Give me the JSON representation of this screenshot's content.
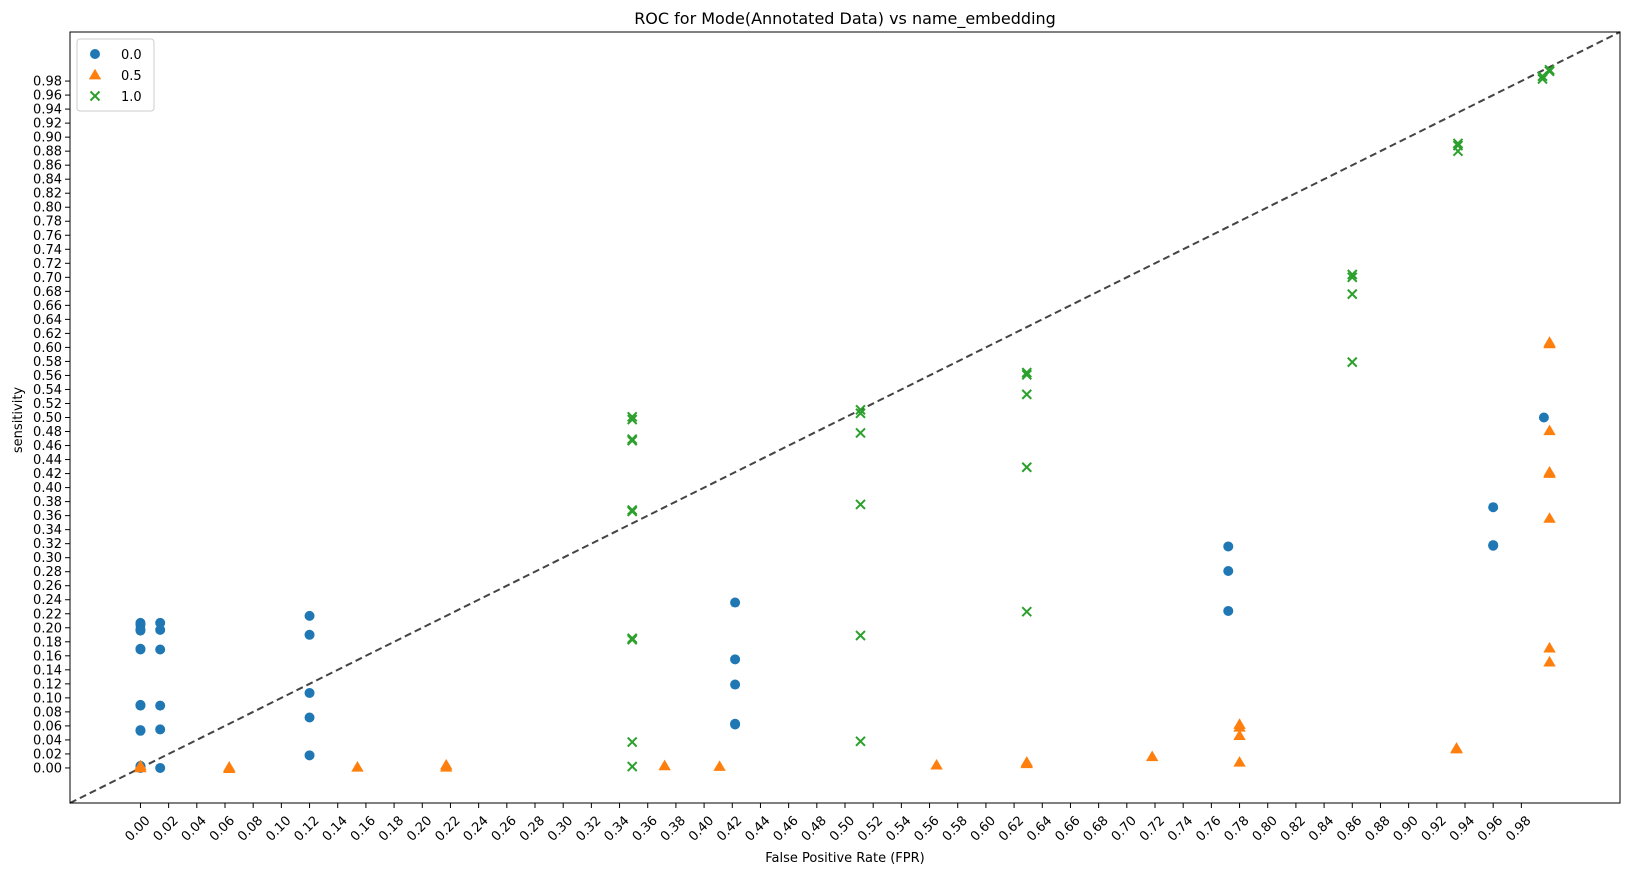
{
  "chart_data": {
    "type": "scatter",
    "title": "ROC for Mode(Annotated Data) vs  name_embedding",
    "xlabel": "False Positive Rate (FPR)",
    "ylabel": "sensitivity",
    "xlim": [
      -0.05,
      1.05
    ],
    "ylim": [
      -0.05,
      1.05
    ],
    "xticks": [
      "0.00",
      "0.02",
      "0.04",
      "0.06",
      "0.08",
      "0.10",
      "0.12",
      "0.14",
      "0.16",
      "0.18",
      "0.20",
      "0.22",
      "0.24",
      "0.26",
      "0.28",
      "0.30",
      "0.32",
      "0.34",
      "0.36",
      "0.38",
      "0.40",
      "0.42",
      "0.44",
      "0.46",
      "0.48",
      "0.50",
      "0.52",
      "0.54",
      "0.56",
      "0.58",
      "0.60",
      "0.62",
      "0.64",
      "0.66",
      "0.68",
      "0.70",
      "0.72",
      "0.74",
      "0.76",
      "0.78",
      "0.80",
      "0.82",
      "0.84",
      "0.86",
      "0.88",
      "0.90",
      "0.92",
      "0.94",
      "0.96",
      "0.98"
    ],
    "yticks": [
      "0.00",
      "0.02",
      "0.04",
      "0.06",
      "0.08",
      "0.10",
      "0.12",
      "0.14",
      "0.16",
      "0.18",
      "0.20",
      "0.22",
      "0.24",
      "0.26",
      "0.28",
      "0.30",
      "0.32",
      "0.34",
      "0.36",
      "0.38",
      "0.40",
      "0.42",
      "0.44",
      "0.46",
      "0.48",
      "0.50",
      "0.52",
      "0.54",
      "0.56",
      "0.58",
      "0.60",
      "0.62",
      "0.64",
      "0.66",
      "0.68",
      "0.70",
      "0.72",
      "0.74",
      "0.76",
      "0.78",
      "0.80",
      "0.82",
      "0.84",
      "0.86",
      "0.88",
      "0.90",
      "0.92",
      "0.94",
      "0.96",
      "0.98"
    ],
    "xtick_rotation": 45,
    "grid": false,
    "legend_position": "top-left",
    "reference_line": {
      "from": [
        -0.05,
        -0.05
      ],
      "to": [
        1.05,
        1.05
      ],
      "style": "dashed",
      "color": "#444444"
    },
    "series": [
      {
        "name": "0.0",
        "marker": "circle",
        "color": "#1f77b4",
        "points": [
          [
            0.0,
            0.207
          ],
          [
            0.0,
            0.204
          ],
          [
            0.0,
            0.198
          ],
          [
            0.0,
            0.196
          ],
          [
            0.0,
            0.17
          ],
          [
            0.0,
            0.169
          ],
          [
            0.0,
            0.09
          ],
          [
            0.0,
            0.089
          ],
          [
            0.0,
            0.054
          ],
          [
            0.0,
            0.053
          ],
          [
            0.0,
            0.003
          ],
          [
            0.0,
            0.0
          ],
          [
            0.014,
            0.207
          ],
          [
            0.014,
            0.197
          ],
          [
            0.014,
            0.169
          ],
          [
            0.014,
            0.089
          ],
          [
            0.014,
            0.055
          ],
          [
            0.014,
            0.0
          ],
          [
            0.12,
            0.217
          ],
          [
            0.12,
            0.19
          ],
          [
            0.12,
            0.107
          ],
          [
            0.12,
            0.072
          ],
          [
            0.12,
            0.018
          ],
          [
            0.422,
            0.236
          ],
          [
            0.422,
            0.155
          ],
          [
            0.422,
            0.119
          ],
          [
            0.422,
            0.063
          ],
          [
            0.422,
            0.062
          ],
          [
            0.772,
            0.316
          ],
          [
            0.772,
            0.281
          ],
          [
            0.772,
            0.224
          ],
          [
            0.96,
            0.372
          ],
          [
            0.96,
            0.318
          ],
          [
            0.96,
            0.317
          ],
          [
            0.996,
            0.5
          ]
        ]
      },
      {
        "name": "0.5",
        "marker": "triangle",
        "color": "#ff7f0e",
        "points": [
          [
            0.0,
            0.003
          ],
          [
            0.0,
            0.0
          ],
          [
            0.063,
            0.001
          ],
          [
            0.063,
            -0.001
          ],
          [
            0.154,
            0.001
          ],
          [
            0.217,
            0.004
          ],
          [
            0.217,
            0.001
          ],
          [
            0.372,
            0.003
          ],
          [
            0.411,
            0.002
          ],
          [
            0.565,
            0.004
          ],
          [
            0.629,
            0.008
          ],
          [
            0.629,
            0.006
          ],
          [
            0.718,
            0.016
          ],
          [
            0.78,
            0.062
          ],
          [
            0.78,
            0.058
          ],
          [
            0.78,
            0.046
          ],
          [
            0.78,
            0.008
          ],
          [
            0.934,
            0.028
          ],
          [
            0.934,
            0.027
          ],
          [
            1.0,
            0.607
          ],
          [
            1.0,
            0.605
          ],
          [
            1.0,
            0.481
          ],
          [
            1.0,
            0.422
          ],
          [
            1.0,
            0.42
          ],
          [
            1.0,
            0.356
          ],
          [
            1.0,
            0.171
          ],
          [
            1.0,
            0.151
          ]
        ]
      },
      {
        "name": "1.0",
        "marker": "x",
        "color": "#2ca02c",
        "points": [
          [
            0.349,
            0.501
          ],
          [
            0.349,
            0.497
          ],
          [
            0.349,
            0.469
          ],
          [
            0.349,
            0.467
          ],
          [
            0.349,
            0.368
          ],
          [
            0.349,
            0.366
          ],
          [
            0.349,
            0.185
          ],
          [
            0.349,
            0.183
          ],
          [
            0.349,
            0.037
          ],
          [
            0.349,
            0.002
          ],
          [
            0.511,
            0.511
          ],
          [
            0.511,
            0.506
          ],
          [
            0.511,
            0.478
          ],
          [
            0.511,
            0.376
          ],
          [
            0.511,
            0.189
          ],
          [
            0.511,
            0.038
          ],
          [
            0.629,
            0.564
          ],
          [
            0.629,
            0.561
          ],
          [
            0.629,
            0.533
          ],
          [
            0.629,
            0.429
          ],
          [
            0.629,
            0.223
          ],
          [
            0.86,
            0.704
          ],
          [
            0.86,
            0.7
          ],
          [
            0.86,
            0.676
          ],
          [
            0.86,
            0.579
          ],
          [
            0.935,
            0.891
          ],
          [
            0.935,
            0.888
          ],
          [
            0.935,
            0.88
          ],
          [
            0.995,
            0.987
          ],
          [
            0.995,
            0.983
          ],
          [
            1.0,
            0.996
          ],
          [
            1.0,
            0.994
          ]
        ]
      }
    ]
  }
}
